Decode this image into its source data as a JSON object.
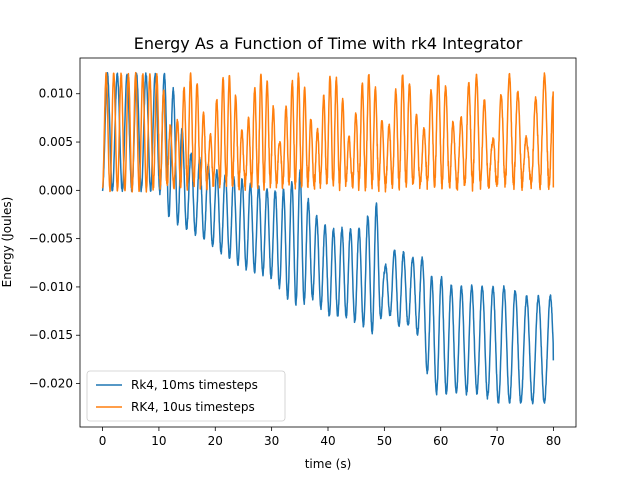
{
  "chart_data": {
    "type": "line",
    "title": "Energy As a Function of Time with rk4 Integrator",
    "xlabel": "time (s)",
    "ylabel": "Energy (Joules)",
    "xlim": [
      -4,
      84
    ],
    "ylim": [
      -0.0245,
      0.0137
    ],
    "xticks": [
      0,
      10,
      20,
      30,
      40,
      50,
      60,
      70,
      80
    ],
    "yticks": [
      -0.02,
      -0.015,
      -0.01,
      -0.005,
      0.0,
      0.005,
      0.01
    ],
    "ytick_labels": [
      "−0.020",
      "−0.015",
      "−0.010",
      "−0.005",
      "0.000",
      "0.005",
      "0.010"
    ],
    "grid": false,
    "legend_position": "lower-left",
    "series": [
      {
        "name": "Rk4, 10ms timesteps",
        "color": "#1f77b4",
        "x": [
          0,
          5,
          7.5,
          10,
          12,
          15,
          18,
          20,
          25,
          30,
          32.5,
          35,
          37,
          40,
          43,
          46,
          48.5,
          50,
          52,
          55,
          57,
          58,
          60,
          62,
          65,
          67,
          70,
          72,
          75,
          77,
          80
        ],
        "lower": [
          0,
          0,
          0,
          0,
          -0.003,
          -0.004,
          -0.005,
          -0.006,
          -0.008,
          -0.009,
          -0.011,
          -0.012,
          -0.011,
          -0.013,
          -0.013,
          -0.014,
          -0.015,
          -0.012,
          -0.014,
          -0.014,
          -0.016,
          -0.021,
          -0.021,
          -0.021,
          -0.021,
          -0.021,
          -0.022,
          -0.022,
          -0.022,
          -0.022,
          -0.022
        ],
        "upper": [
          0.012,
          0.012,
          0.012,
          0.012,
          0.012,
          0.004,
          0.003,
          0.002,
          0.001,
          0.0,
          0.0,
          0.002,
          -0.002,
          -0.004,
          -0.004,
          -0.004,
          -0.001,
          -0.008,
          -0.006,
          -0.007,
          -0.007,
          -0.009,
          -0.009,
          -0.01,
          -0.01,
          -0.01,
          -0.01,
          -0.01,
          -0.011,
          -0.011,
          -0.011
        ],
        "final_value": -0.0176
      },
      {
        "name": "RK4, 10us timesteps",
        "color": "#ff7f0e",
        "x": [
          0,
          5,
          10,
          15,
          20,
          25,
          30,
          35,
          40,
          45,
          50,
          55,
          60,
          65,
          70,
          75,
          80
        ],
        "lower": [
          0,
          0,
          0,
          0,
          0,
          0,
          0,
          0,
          0,
          0,
          0,
          0,
          0,
          0,
          0,
          0,
          0
        ],
        "upper": [
          0.012,
          0.012,
          0.012,
          0.012,
          0.012,
          0.012,
          0.012,
          0.012,
          0.012,
          0.012,
          0.012,
          0.012,
          0.012,
          0.012,
          0.012,
          0.012,
          0.012
        ],
        "final_value": 0.0003
      }
    ]
  }
}
